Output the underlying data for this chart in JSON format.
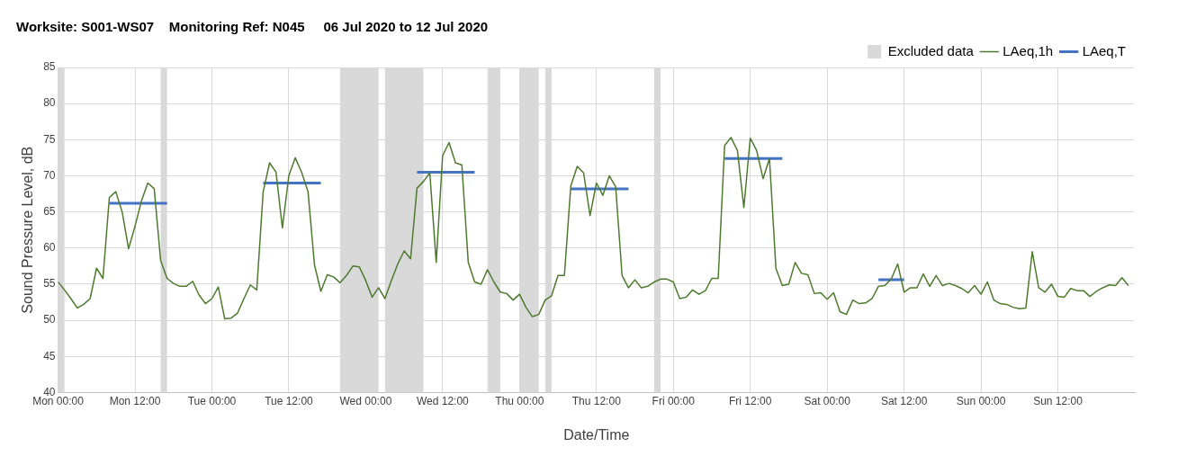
{
  "chart_data": {
    "type": "line",
    "title": "Worksite: S001-WS07    Monitoring Ref: N045     06 Jul 2020 to 12 Jul 2020",
    "xlabel": "Date/Time",
    "ylabel": "Sound Pressure Level, dB",
    "xlim": [
      "2020-07-06T00:00",
      "2020-07-13T00:00"
    ],
    "xticks": [
      {
        "value": "2020-07-06T00:00",
        "label": "Mon 00:00"
      },
      {
        "value": "2020-07-06T12:00",
        "label": "Mon 12:00"
      },
      {
        "value": "2020-07-07T00:00",
        "label": "Tue 00:00"
      },
      {
        "value": "2020-07-07T12:00",
        "label": "Tue 12:00"
      },
      {
        "value": "2020-07-08T00:00",
        "label": "Wed 00:00"
      },
      {
        "value": "2020-07-08T12:00",
        "label": "Wed 12:00"
      },
      {
        "value": "2020-07-09T00:00",
        "label": "Thu 00:00"
      },
      {
        "value": "2020-07-09T12:00",
        "label": "Thu 12:00"
      },
      {
        "value": "2020-07-10T00:00",
        "label": "Fri 00:00"
      },
      {
        "value": "2020-07-10T12:00",
        "label": "Fri 12:00"
      },
      {
        "value": "2020-07-11T00:00",
        "label": "Sat 00:00"
      },
      {
        "value": "2020-07-11T12:00",
        "label": "Sat 12:00"
      },
      {
        "value": "2020-07-12T00:00",
        "label": "Sun 00:00"
      },
      {
        "value": "2020-07-12T12:00",
        "label": "Sun 12:00"
      }
    ],
    "ylim": [
      40,
      85
    ],
    "yticks": [
      40,
      45,
      50,
      55,
      60,
      65,
      70,
      75,
      80,
      85
    ],
    "grid": true,
    "legend": "top right",
    "marker": "none",
    "line_style": "solid",
    "bands": [
      {
        "axis": "x",
        "from": "2020-07-06T00:00",
        "to": "2020-07-06T01:00",
        "label": "Excluded data",
        "color": "#d9d9d9"
      },
      {
        "axis": "x",
        "from": "2020-07-06T16:00",
        "to": "2020-07-06T17:00",
        "color": "#d9d9d9"
      },
      {
        "axis": "x",
        "from": "2020-07-07T20:00",
        "to": "2020-07-08T02:00",
        "color": "#d9d9d9"
      },
      {
        "axis": "x",
        "from": "2020-07-08T03:00",
        "to": "2020-07-08T09:00",
        "color": "#d9d9d9"
      },
      {
        "axis": "x",
        "from": "2020-07-08T19:00",
        "to": "2020-07-08T21:00",
        "color": "#d9d9d9"
      },
      {
        "axis": "x",
        "from": "2020-07-09T00:00",
        "to": "2020-07-09T03:00",
        "color": "#d9d9d9"
      },
      {
        "axis": "x",
        "from": "2020-07-09T04:00",
        "to": "2020-07-09T05:00",
        "color": "#d9d9d9"
      },
      {
        "axis": "x",
        "from": "2020-07-09T21:00",
        "to": "2020-07-09T22:00",
        "color": "#d9d9d9"
      }
    ],
    "series": [
      {
        "name": "LAeq,1h",
        "color": "#4e7a2e",
        "x": [
          "2020-07-06T00:00",
          "2020-07-06T01:00",
          "2020-07-06T02:00",
          "2020-07-06T03:00",
          "2020-07-06T04:00",
          "2020-07-06T05:00",
          "2020-07-06T06:00",
          "2020-07-06T07:00",
          "2020-07-06T08:00",
          "2020-07-06T09:00",
          "2020-07-06T10:00",
          "2020-07-06T11:00",
          "2020-07-06T12:00",
          "2020-07-06T13:00",
          "2020-07-06T14:00",
          "2020-07-06T15:00",
          "2020-07-06T16:00",
          "2020-07-06T17:00",
          "2020-07-06T18:00",
          "2020-07-06T19:00",
          "2020-07-06T20:00",
          "2020-07-06T21:00",
          "2020-07-06T22:00",
          "2020-07-06T23:00",
          "2020-07-07T00:00",
          "2020-07-07T01:00",
          "2020-07-07T02:00",
          "2020-07-07T03:00",
          "2020-07-07T04:00",
          "2020-07-07T05:00",
          "2020-07-07T06:00",
          "2020-07-07T07:00",
          "2020-07-07T08:00",
          "2020-07-07T09:00",
          "2020-07-07T10:00",
          "2020-07-07T11:00",
          "2020-07-07T12:00",
          "2020-07-07T13:00",
          "2020-07-07T14:00",
          "2020-07-07T15:00",
          "2020-07-07T16:00",
          "2020-07-07T17:00",
          "2020-07-07T18:00",
          "2020-07-07T19:00",
          "2020-07-07T20:00",
          "2020-07-07T21:00",
          "2020-07-07T22:00",
          "2020-07-07T23:00",
          "2020-07-08T00:00",
          "2020-07-08T01:00",
          "2020-07-08T02:00",
          "2020-07-08T03:00",
          "2020-07-08T04:00",
          "2020-07-08T05:00",
          "2020-07-08T06:00",
          "2020-07-08T07:00",
          "2020-07-08T08:00",
          "2020-07-08T09:00",
          "2020-07-08T10:00",
          "2020-07-08T11:00",
          "2020-07-08T12:00",
          "2020-07-08T13:00",
          "2020-07-08T14:00",
          "2020-07-08T15:00",
          "2020-07-08T16:00",
          "2020-07-08T17:00",
          "2020-07-08T18:00",
          "2020-07-08T19:00",
          "2020-07-08T20:00",
          "2020-07-08T21:00",
          "2020-07-08T22:00",
          "2020-07-08T23:00",
          "2020-07-09T00:00",
          "2020-07-09T01:00",
          "2020-07-09T02:00",
          "2020-07-09T03:00",
          "2020-07-09T04:00",
          "2020-07-09T05:00",
          "2020-07-09T06:00",
          "2020-07-09T07:00",
          "2020-07-09T08:00",
          "2020-07-09T09:00",
          "2020-07-09T10:00",
          "2020-07-09T11:00",
          "2020-07-09T12:00",
          "2020-07-09T13:00",
          "2020-07-09T14:00",
          "2020-07-09T15:00",
          "2020-07-09T16:00",
          "2020-07-09T17:00",
          "2020-07-09T18:00",
          "2020-07-09T19:00",
          "2020-07-09T20:00",
          "2020-07-09T21:00",
          "2020-07-09T22:00",
          "2020-07-09T23:00",
          "2020-07-10T00:00",
          "2020-07-10T01:00",
          "2020-07-10T02:00",
          "2020-07-10T03:00",
          "2020-07-10T04:00",
          "2020-07-10T05:00",
          "2020-07-10T06:00",
          "2020-07-10T07:00",
          "2020-07-10T08:00",
          "2020-07-10T09:00",
          "2020-07-10T10:00",
          "2020-07-10T11:00",
          "2020-07-10T12:00",
          "2020-07-10T13:00",
          "2020-07-10T14:00",
          "2020-07-10T15:00",
          "2020-07-10T16:00",
          "2020-07-10T17:00",
          "2020-07-10T18:00",
          "2020-07-10T19:00",
          "2020-07-10T20:00",
          "2020-07-10T21:00",
          "2020-07-10T22:00",
          "2020-07-10T23:00",
          "2020-07-11T00:00",
          "2020-07-11T01:00",
          "2020-07-11T02:00",
          "2020-07-11T03:00",
          "2020-07-11T04:00",
          "2020-07-11T05:00",
          "2020-07-11T06:00",
          "2020-07-11T07:00",
          "2020-07-11T08:00",
          "2020-07-11T09:00",
          "2020-07-11T10:00",
          "2020-07-11T11:00",
          "2020-07-11T12:00",
          "2020-07-11T13:00",
          "2020-07-11T14:00",
          "2020-07-11T15:00",
          "2020-07-11T16:00",
          "2020-07-11T17:00",
          "2020-07-11T18:00",
          "2020-07-11T19:00",
          "2020-07-11T20:00",
          "2020-07-11T21:00",
          "2020-07-11T22:00",
          "2020-07-11T23:00",
          "2020-07-12T00:00",
          "2020-07-12T01:00",
          "2020-07-12T02:00",
          "2020-07-12T03:00",
          "2020-07-12T04:00",
          "2020-07-12T05:00",
          "2020-07-12T06:00",
          "2020-07-12T07:00",
          "2020-07-12T08:00",
          "2020-07-12T09:00",
          "2020-07-12T10:00",
          "2020-07-12T11:00",
          "2020-07-12T12:00",
          "2020-07-12T13:00",
          "2020-07-12T14:00",
          "2020-07-12T15:00",
          "2020-07-12T16:00",
          "2020-07-12T17:00",
          "2020-07-12T18:00",
          "2020-07-12T19:00",
          "2020-07-12T20:00",
          "2020-07-12T21:00",
          "2020-07-12T22:00",
          "2020-07-12T23:00"
        ],
        "values": [
          55.3,
          54.2,
          53,
          51.7,
          52.2,
          53,
          57.2,
          55.8,
          67,
          67.8,
          65,
          59.9,
          63,
          66.5,
          69,
          68.2,
          58.3,
          55.8,
          55.1,
          54.7,
          54.7,
          55.4,
          53.5,
          52.3,
          53,
          54.6,
          50.2,
          50.3,
          51,
          53,
          54.9,
          54.2,
          67.8,
          71.8,
          70.5,
          62.8,
          70,
          72.5,
          70.5,
          67.8,
          57.7,
          54,
          56.3,
          56,
          55.2,
          56.2,
          57.5,
          57.4,
          55.5,
          53.2,
          54.5,
          53,
          55.5,
          57.8,
          59.6,
          58.5,
          68.3,
          69.2,
          70.4,
          58,
          72.8,
          74.6,
          71.8,
          71.5,
          58,
          55.3,
          55,
          57,
          55.3,
          53.9,
          53.7,
          52.8,
          53.6,
          51.8,
          50.5,
          50.8,
          52.8,
          53.4,
          56.2,
          56.2,
          68.6,
          71.3,
          70.4,
          64.5,
          69,
          67.3,
          70,
          68.5,
          56.2,
          54.5,
          55.6,
          54.5,
          54.7,
          55.3,
          55.7,
          55.7,
          55.3,
          53,
          53.2,
          54.2,
          53.6,
          54.1,
          55.8,
          55.8,
          74.2,
          75.3,
          73.5,
          65.6,
          75.2,
          73.5,
          69.6,
          72.4,
          57.2,
          54.8,
          55,
          58,
          56.5,
          56.3,
          53.7,
          53.8,
          52.9,
          53.8,
          51.2,
          50.8,
          52.8,
          52.3,
          52.4,
          53,
          54.7,
          54.8,
          55.7,
          57.8,
          53.9,
          54.5,
          54.5,
          56.4,
          54.7,
          56.2,
          54.8,
          55.1,
          54.8,
          54.4,
          53.8,
          54.8,
          53.6,
          55.3,
          52.8,
          52.3,
          52.2,
          51.8,
          51.6,
          51.7,
          59.5,
          54.5,
          53.9,
          55,
          53.3,
          53.2,
          54.4,
          54.1,
          54.1,
          53.3,
          54,
          54.5,
          54.9,
          54.8,
          55.9,
          54.8
        ]
      },
      {
        "name": "LAeq,T",
        "color": "#4472c4",
        "x": [
          "2020-07-06T08:00",
          "2020-07-06T17:00",
          "2020-07-07T00:00",
          "2020-07-07T08:00",
          "2020-07-07T17:00",
          "2020-07-08T00:00",
          "2020-07-08T08:00",
          "2020-07-08T17:00",
          "2020-07-09T00:00",
          "2020-07-09T08:00",
          "2020-07-09T17:00",
          "2020-07-10T00:00",
          "2020-07-10T08:00",
          "2020-07-10T17:00",
          "2020-07-11T00:00",
          "2020-07-11T08:00",
          "2020-07-11T12:00"
        ],
        "values": [
          66.2,
          66.2,
          null,
          69,
          69,
          null,
          70.5,
          70.5,
          null,
          68.2,
          68.2,
          null,
          72.4,
          72.4,
          null,
          55.6,
          55.6
        ]
      }
    ]
  }
}
